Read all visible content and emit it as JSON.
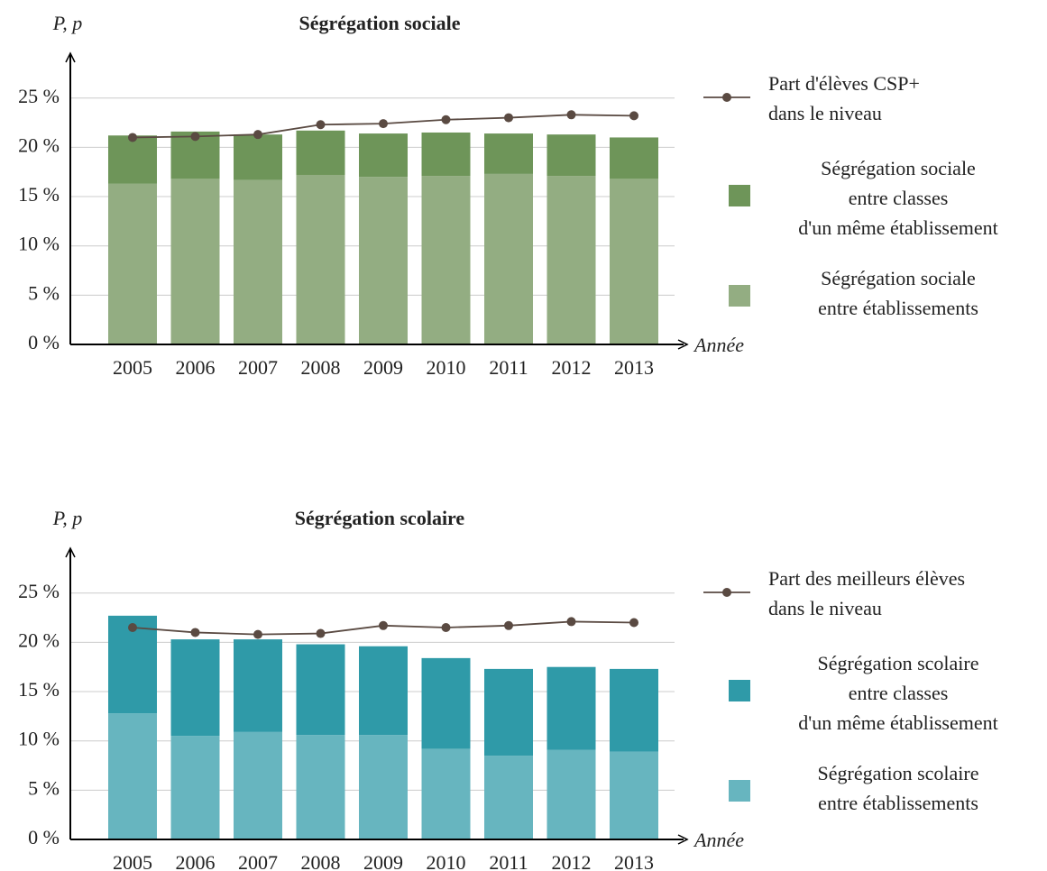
{
  "chart_data": [
    {
      "type": "bar",
      "title": "Ségrégation sociale",
      "y_label": "P, p",
      "x_label": "Année",
      "categories": [
        "2005",
        "2006",
        "2007",
        "2008",
        "2009",
        "2010",
        "2011",
        "2012",
        "2013"
      ],
      "series": [
        {
          "name": "Ségrégation sociale\nentre établissements",
          "color": "#93ad82",
          "values": [
            16.3,
            16.8,
            16.7,
            17.2,
            17.0,
            17.1,
            17.3,
            17.1,
            16.8
          ]
        },
        {
          "name": "Ségrégation sociale\nentre classes\nd'un même établissement",
          "color": "#6e9559",
          "values": [
            4.9,
            4.8,
            4.6,
            4.5,
            4.4,
            4.4,
            4.1,
            4.2,
            4.2
          ]
        },
        {
          "name": "Part d'élèves CSP+\ndans le niveau",
          "type": "line",
          "color": "#5a4a42",
          "values": [
            21.0,
            21.1,
            21.3,
            22.3,
            22.4,
            22.8,
            23.0,
            23.3,
            23.2
          ]
        }
      ],
      "stacked": true,
      "ylim": [
        0,
        29
      ],
      "yticks": [
        {
          "value": 0,
          "label": "0 %"
        },
        {
          "value": 5,
          "label": "5 %"
        },
        {
          "value": 10,
          "label": "10 %"
        },
        {
          "value": 15,
          "label": "15 %"
        },
        {
          "value": 20,
          "label": "20 %"
        },
        {
          "value": 25,
          "label": "25 %"
        }
      ],
      "grid": true,
      "legend": "right"
    },
    {
      "type": "bar",
      "title": "Ségrégation scolaire",
      "y_label": "P, p",
      "x_label": "Année",
      "categories": [
        "2005",
        "2006",
        "2007",
        "2008",
        "2009",
        "2010",
        "2011",
        "2012",
        "2013"
      ],
      "series": [
        {
          "name": "Ségrégation scolaire\nentre établissements",
          "color": "#67b5bf",
          "values": [
            12.8,
            10.5,
            10.9,
            10.6,
            10.6,
            9.2,
            8.5,
            9.1,
            8.9
          ]
        },
        {
          "name": "Ségrégation scolaire\nentre classes\nd'un même établissement",
          "color": "#2f9aa8",
          "values": [
            9.9,
            9.8,
            9.4,
            9.2,
            9.0,
            9.2,
            8.8,
            8.4,
            8.4
          ]
        },
        {
          "name": "Part des meilleurs élèves\ndans le niveau",
          "type": "line",
          "color": "#5a4a42",
          "values": [
            21.5,
            21.0,
            20.8,
            20.9,
            21.7,
            21.5,
            21.7,
            22.1,
            22.0
          ]
        }
      ],
      "stacked": true,
      "ylim": [
        0,
        29
      ],
      "yticks": [
        {
          "value": 0,
          "label": "0 %"
        },
        {
          "value": 5,
          "label": "5 %"
        },
        {
          "value": 10,
          "label": "10 %"
        },
        {
          "value": 15,
          "label": "15 %"
        },
        {
          "value": 20,
          "label": "20 %"
        },
        {
          "value": 25,
          "label": "25 %"
        }
      ],
      "grid": true,
      "legend": "right"
    }
  ]
}
